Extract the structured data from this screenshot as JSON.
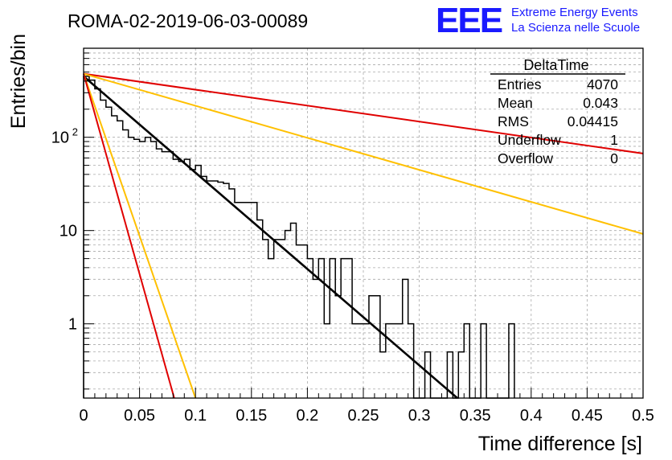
{
  "title": "ROMA-02-2019-06-03-00089",
  "logo": {
    "mark": "EEE",
    "line1": "Extreme Energy Events",
    "line2": "La Scienza nelle Scuole",
    "color": "#1a1aff"
  },
  "stats": {
    "name": "DeltaTime",
    "rows": [
      {
        "label": "Entries",
        "value": "4070"
      },
      {
        "label": "Mean",
        "value": "0.043"
      },
      {
        "label": "RMS",
        "value": "0.04415"
      },
      {
        "label": "Underflow",
        "value": "1"
      },
      {
        "label": "Overflow",
        "value": "0"
      }
    ]
  },
  "chart_data": {
    "type": "line",
    "xlabel": "Time difference [s]",
    "ylabel": "Entries/bin",
    "xlim": [
      0,
      0.5
    ],
    "ylim": [
      0.16,
      900
    ],
    "ylog": true,
    "grid": true,
    "x_ticks": [
      "0",
      "0.05",
      "0.1",
      "0.15",
      "0.2",
      "0.25",
      "0.3",
      "0.35",
      "0.4",
      "0.45",
      "0.5"
    ],
    "y_ticks": [
      {
        "value": 1,
        "label": "1"
      },
      {
        "value": 10,
        "label": "10"
      },
      {
        "value": 100,
        "label": "10",
        "exp": "2"
      }
    ],
    "histogram": {
      "name": "DeltaTime",
      "color": "#000000",
      "bin_width": 0.005,
      "counts": [
        450,
        410,
        330,
        250,
        210,
        170,
        150,
        120,
        100,
        95,
        90,
        100,
        90,
        75,
        70,
        70,
        58,
        55,
        58,
        45,
        50,
        38,
        34,
        34,
        33,
        32,
        28,
        20,
        20,
        20,
        20,
        13,
        8,
        5,
        8,
        8,
        10,
        12,
        7,
        7,
        5,
        3,
        5,
        1,
        5,
        2,
        5,
        5,
        1,
        1,
        1,
        2,
        2,
        0.5,
        1,
        1,
        1,
        3,
        1,
        0,
        0,
        0.5,
        0,
        0,
        0,
        0.5,
        0,
        0.5,
        1,
        0,
        0,
        1,
        0,
        0,
        0,
        0,
        1
      ]
    },
    "fits": [
      {
        "color": "#e00000",
        "x": [
          0,
          0.5
        ],
        "y": [
          480,
          67
        ]
      },
      {
        "color": "#ffc000",
        "x": [
          0,
          0.5
        ],
        "y": [
          480,
          9.2
        ]
      },
      {
        "color": "#000000",
        "x": [
          0,
          0.334
        ],
        "y": [
          450,
          0.16
        ]
      },
      {
        "color": "#ffc000",
        "x": [
          0,
          0.1
        ],
        "y": [
          480,
          0.16
        ]
      },
      {
        "color": "#e00000",
        "x": [
          0,
          0.081
        ],
        "y": [
          480,
          0.16
        ]
      }
    ]
  }
}
